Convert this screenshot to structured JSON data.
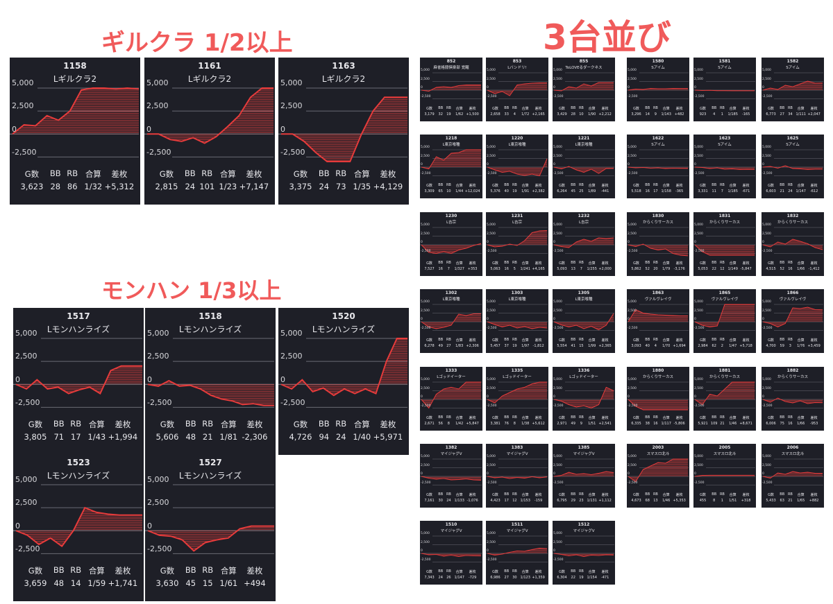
{
  "headings": {
    "gilcra": "ギルクラ 1/2以上",
    "monhun": "モンハン 1/3以上",
    "sandai": "3台並び"
  },
  "colors": {
    "accent": "#f05a5a",
    "card_bg": "#1e1f27",
    "line": "#e63b3b",
    "fill": "#c63a3a"
  },
  "stat_headers": [
    "G数",
    "BB",
    "RB",
    "合算",
    "差枚"
  ],
  "small_stat_headers": [
    "G数",
    "BB",
    "RB",
    "合算",
    "差枚"
  ],
  "axis_labels": [
    "5,000",
    "2,500",
    "0",
    "-2,500"
  ],
  "small_axis_labels": [
    "5,000",
    "2,500",
    "0",
    "-2,500"
  ],
  "chart_data": {
    "type": "line",
    "ylim": [
      -3000,
      5000
    ],
    "y_ticks": [
      5000,
      2500,
      0,
      -2500
    ],
    "groups": {
      "gilcra": [
        {
          "id": "1158",
          "name": "Lギルクラ2",
          "stats": [
            "3,623",
            "28",
            "86",
            "1/32",
            "+5,312"
          ],
          "y": [
            0,
            1000,
            900,
            2000,
            1500,
            2500,
            4800,
            5000,
            5000,
            4900,
            5000,
            4900
          ]
        },
        {
          "id": "1161",
          "name": "Lギルクラ2",
          "stats": [
            "2,815",
            "24",
            "101",
            "1/23",
            "+7,147"
          ],
          "y": [
            0,
            0,
            -600,
            -800,
            -400,
            -1000,
            -300,
            800,
            2000,
            4000,
            5000,
            5000
          ]
        },
        {
          "id": "1163",
          "name": "Lギルクラ2",
          "stats": [
            "3,375",
            "24",
            "73",
            "1/35",
            "+4,129"
          ],
          "y": [
            0,
            0,
            -800,
            -2000,
            -3000,
            -3000,
            -3000,
            0,
            2500,
            4000,
            4000,
            4000
          ]
        }
      ],
      "monhun": [
        {
          "id": "1517",
          "name": "Lモンハンライズ",
          "stats": [
            "3,805",
            "71",
            "17",
            "1/43",
            "+1,994"
          ],
          "y": [
            0,
            -500,
            500,
            -500,
            -300,
            -1000,
            -600,
            -300,
            -1000,
            1500,
            2000,
            2000,
            2000
          ]
        },
        {
          "id": "1518",
          "name": "Lモンハンライズ",
          "stats": [
            "5,606",
            "48",
            "21",
            "1/81",
            "-2,306"
          ],
          "y": [
            0,
            -200,
            400,
            -200,
            -100,
            -500,
            -1200,
            -1600,
            -1800,
            -2200,
            -2100,
            -2300,
            -2300
          ]
        },
        {
          "id": "1520",
          "name": "Lモンハンライズ",
          "stats": [
            "4,726",
            "94",
            "24",
            "1/40",
            "+5,971"
          ],
          "y": [
            0,
            -500,
            500,
            -800,
            -400,
            -1200,
            -500,
            -1000,
            -500,
            -1000,
            2500,
            5000,
            5000
          ]
        },
        {
          "id": "1523",
          "name": "Lモンハンライズ",
          "stats": [
            "3,659",
            "48",
            "14",
            "1/59",
            "+1,741"
          ],
          "y": [
            0,
            -500,
            -1500,
            -800,
            -1700,
            0,
            2500,
            2000,
            1800,
            1700,
            1700,
            1700
          ]
        },
        {
          "id": "1527",
          "name": "Lモンハンライズ",
          "stats": [
            "3,630",
            "45",
            "15",
            "1/61",
            "+494"
          ],
          "y": [
            0,
            -500,
            -600,
            -1000,
            -2200,
            -1300,
            -1000,
            -800,
            200,
            500,
            500,
            500
          ]
        }
      ],
      "sandai_left": [
        {
          "id": "852",
          "name": "麻雀格闘倶楽部 覚醒",
          "stats": [
            "3,179",
            "32",
            "19",
            "1/62",
            "+1,500"
          ],
          "y": [
            0,
            -300,
            800,
            1000,
            800,
            1300,
            1500,
            1500,
            1500
          ]
        },
        {
          "id": "853",
          "name": "Lバンドリ!",
          "stats": [
            "2,658",
            "33",
            "4",
            "1/72",
            "+2,165"
          ],
          "y": [
            0,
            -1000,
            -400,
            -1600,
            1500,
            1800,
            2000,
            2100,
            2100
          ]
        },
        {
          "id": "855",
          "name": "ToLOVEるダークネス",
          "stats": [
            "3,429",
            "28",
            "10",
            "1/90",
            "+2,212"
          ],
          "y": [
            0,
            -200,
            1000,
            600,
            1800,
            1200,
            2200,
            2200,
            2200
          ]
        },
        {
          "id": "1218",
          "name": "L東京喰種",
          "stats": [
            "3,309",
            "65",
            "10",
            "1/44",
            "+12,024"
          ],
          "y": [
            0,
            -500,
            3000,
            2000,
            4000,
            4200,
            5000,
            5000,
            5000
          ]
        },
        {
          "id": "1220",
          "name": "L東京喰種",
          "stats": [
            "5,376",
            "40",
            "19",
            "1/91",
            "+2,382"
          ],
          "y": [
            0,
            -800,
            -1500,
            -1200,
            -2000,
            -2400,
            -2000,
            -2500,
            2400
          ]
        },
        {
          "id": "1221",
          "name": "L東京喰種",
          "stats": [
            "6,264",
            "45",
            "25",
            "1/89",
            "-441"
          ],
          "y": [
            0,
            -500,
            200,
            -800,
            -1500,
            -600,
            -1800,
            -400,
            -400
          ]
        },
        {
          "id": "1230",
          "name": "L吉宗",
          "stats": [
            "7,527",
            "16",
            "7",
            "1/327",
            "+353"
          ],
          "y": [
            0,
            -2200,
            -2500,
            -2000,
            -2500,
            -1500,
            -1000,
            -200,
            350
          ]
        },
        {
          "id": "1231",
          "name": "L吉宗",
          "stats": [
            "5,063",
            "16",
            "5",
            "1/241",
            "+4,165"
          ],
          "y": [
            0,
            -600,
            -400,
            200,
            -200,
            1200,
            3500,
            4000,
            4100
          ]
        },
        {
          "id": "1232",
          "name": "L吉宗",
          "stats": [
            "5,093",
            "13",
            "7",
            "1/255",
            "+2,000"
          ],
          "y": [
            0,
            -500,
            -800,
            800,
            1600,
            1000,
            2000,
            1800,
            2000
          ]
        },
        {
          "id": "1302",
          "name": "L東京喰種",
          "stats": [
            "6,278",
            "49",
            "27",
            "1/83",
            "+2,306"
          ],
          "y": [
            0,
            -1500,
            -2000,
            -1600,
            -1000,
            2200,
            1800,
            2300,
            2300
          ]
        },
        {
          "id": "1303",
          "name": "L東京喰種",
          "stats": [
            "5,457",
            "37",
            "19",
            "1/97",
            "-1,812"
          ],
          "y": [
            0,
            -800,
            -1500,
            -1000,
            -1800,
            -1400,
            -2000,
            -1600,
            -1800
          ]
        },
        {
          "id": "1305",
          "name": "L東京喰種",
          "stats": [
            "5,554",
            "41",
            "15",
            "1/99",
            "+2,365"
          ],
          "y": [
            0,
            -900,
            -1500,
            -1000,
            -2000,
            -1300,
            -2300,
            -1000,
            2400
          ]
        },
        {
          "id": "1333",
          "name": "Lゴッドイーター",
          "stats": [
            "2,671",
            "56",
            "8",
            "1/42",
            "+5,847"
          ],
          "y": [
            0,
            -2500,
            1500,
            3000,
            3500,
            3000,
            5000,
            5000,
            5000
          ]
        },
        {
          "id": "1335",
          "name": "Lゴッドイーター",
          "stats": [
            "3,381",
            "76",
            "8",
            "1/38",
            "+5,612"
          ],
          "y": [
            0,
            -1000,
            1000,
            2000,
            3000,
            3500,
            4500,
            5000,
            5000
          ]
        },
        {
          "id": "1336",
          "name": "Lゴッドイーター",
          "stats": [
            "2,971",
            "49",
            "9",
            "1/51",
            "+2,541"
          ],
          "y": [
            0,
            -500,
            -1500,
            -2200,
            -1800,
            -2500,
            -1500,
            3500,
            2500
          ]
        },
        {
          "id": "1382",
          "name": "マイジャグV",
          "stats": [
            "7,161",
            "30",
            "24",
            "1/133",
            "-1,076"
          ],
          "y": [
            0,
            -500,
            -800,
            -600,
            -1000,
            -900,
            -700,
            -1000,
            -1100
          ]
        },
        {
          "id": "1383",
          "name": "マイジャグV",
          "stats": [
            "4,423",
            "17",
            "12",
            "1/153",
            "-159"
          ],
          "y": [
            0,
            -400,
            -200,
            -600,
            -300,
            -500,
            -100,
            -400,
            -150
          ]
        },
        {
          "id": "1385",
          "name": "マイジャグV",
          "stats": [
            "6,795",
            "29",
            "23",
            "1/131",
            "+1,112"
          ],
          "y": [
            0,
            300,
            1200,
            600,
            800,
            500,
            900,
            1400,
            1100
          ]
        },
        {
          "id": "1510",
          "name": "マイジャグV",
          "stats": [
            "7,343",
            "24",
            "26",
            "1/147",
            "-729"
          ],
          "y": [
            0,
            -400,
            -300,
            -800,
            -500,
            -900,
            -600,
            -700,
            -730
          ]
        },
        {
          "id": "1511",
          "name": "マイジャグV",
          "stats": [
            "6,986",
            "27",
            "30",
            "1/123",
            "+1,359"
          ],
          "y": [
            0,
            -500,
            -200,
            300,
            700,
            600,
            1100,
            1500,
            1360
          ]
        },
        {
          "id": "1512",
          "name": "マイジャグV",
          "stats": [
            "6,304",
            "22",
            "19",
            "1/154",
            "-471"
          ],
          "y": [
            0,
            -300,
            -700,
            -400,
            -900,
            -500,
            -600,
            -400,
            -470
          ]
        }
      ],
      "sandai_right": [
        {
          "id": "1580",
          "name": "Sアイム",
          "stats": [
            "3,296",
            "14",
            "9",
            "1/143",
            "+482"
          ],
          "y": [
            0,
            300,
            200,
            500,
            400,
            400,
            500,
            480,
            480
          ]
        },
        {
          "id": "1581",
          "name": "Sアイム",
          "stats": [
            "923",
            "4",
            "1",
            "1/185",
            "-165"
          ],
          "y": [
            0,
            -100,
            -50,
            -150,
            -160,
            -165,
            -165,
            -165,
            -165
          ]
        },
        {
          "id": "1582",
          "name": "Sアイム",
          "stats": [
            "6,773",
            "27",
            "34",
            "1/111",
            "+2,047"
          ],
          "y": [
            0,
            600,
            200,
            1400,
            1000,
            1800,
            2600,
            2000,
            2050
          ]
        },
        {
          "id": "1622",
          "name": "Sアイム",
          "stats": [
            "5,518",
            "16",
            "17",
            "1/158",
            "-365"
          ],
          "y": [
            0,
            -200,
            -100,
            -300,
            -200,
            -400,
            -300,
            -350,
            -365
          ]
        },
        {
          "id": "1623",
          "name": "Sアイム",
          "stats": [
            "3,331",
            "11",
            "7",
            "1/185",
            "-671"
          ],
          "y": [
            0,
            -100,
            -400,
            -200,
            -600,
            -500,
            -700,
            -650,
            -670
          ]
        },
        {
          "id": "1625",
          "name": "Sアイム",
          "stats": [
            "6,603",
            "21",
            "24",
            "1/147",
            "-612"
          ],
          "y": [
            0,
            200,
            -300,
            400,
            -400,
            -500,
            -700,
            -600,
            -612
          ]
        },
        {
          "id": "1830",
          "name": "からくりサーカス",
          "stats": [
            "5,862",
            "52",
            "20",
            "1/79",
            "-3,176"
          ],
          "y": [
            0,
            -500,
            200,
            -1000,
            -1500,
            -1200,
            -2500,
            -3000,
            -3176
          ]
        },
        {
          "id": "1831",
          "name": "からくりサーカス",
          "stats": [
            "5,053",
            "22",
            "12",
            "1/149",
            "-5,847"
          ],
          "y": [
            0,
            -2000,
            -3000,
            -3000,
            -3000,
            -3000,
            -3000,
            -3000,
            -3000
          ]
        },
        {
          "id": "1832",
          "name": "からくりサーカス",
          "stats": [
            "4,515",
            "52",
            "16",
            "1/66",
            "-1,412"
          ],
          "y": [
            0,
            -600,
            800,
            200,
            1600,
            1000,
            300,
            -800,
            -1412
          ]
        },
        {
          "id": "1863",
          "name": "ヴァルヴレイヴ",
          "stats": [
            "3,093",
            "40",
            "4",
            "1/70",
            "+1,694"
          ],
          "y": [
            0,
            3500,
            2500,
            2200,
            2000,
            1900,
            1800,
            1700,
            1694
          ]
        },
        {
          "id": "1865",
          "name": "ヴァルヴレイヴ",
          "stats": [
            "2,984",
            "62",
            "2",
            "1/47",
            "+5,718"
          ],
          "y": [
            0,
            -1000,
            -1500,
            -1200,
            5000,
            5000,
            5000,
            5000,
            5000
          ]
        },
        {
          "id": "1866",
          "name": "ヴァルヴレイヴ",
          "stats": [
            "4,700",
            "59",
            "3",
            "1/76",
            "+3,459"
          ],
          "y": [
            0,
            -500,
            -1500,
            -500,
            4000,
            3800,
            4200,
            3500,
            3459
          ]
        },
        {
          "id": "1880",
          "name": "からくりサーカス",
          "stats": [
            "6,335",
            "38",
            "16",
            "1/117",
            "-5,806"
          ],
          "y": [
            0,
            -2000,
            -3000,
            -3000,
            -3000,
            -3000,
            -3000,
            -3000,
            -3000
          ]
        },
        {
          "id": "1881",
          "name": "からくりサーカス",
          "stats": [
            "5,921",
            "109",
            "21",
            "1/46",
            "+8,671"
          ],
          "y": [
            0,
            -1500,
            1500,
            1000,
            3000,
            5000,
            5000,
            5000,
            5000
          ]
        },
        {
          "id": "1882",
          "name": "からくりサーカス",
          "stats": [
            "6,006",
            "75",
            "16",
            "1/66",
            "-953"
          ],
          "y": [
            0,
            -800,
            400,
            -600,
            -1000,
            -400,
            -1200,
            -900,
            -953
          ]
        },
        {
          "id": "2003",
          "name": "スマスロ北斗",
          "stats": [
            "4,673",
            "68",
            "13",
            "1/46",
            "+5,353"
          ],
          "y": [
            0,
            -1500,
            2000,
            3000,
            4000,
            3800,
            5000,
            5000,
            5000
          ]
        },
        {
          "id": "2005",
          "name": "スマスロ北斗",
          "stats": [
            "455",
            "8",
            "1",
            "1/51",
            "+318"
          ],
          "y": [
            0,
            300,
            320,
            318,
            318,
            318,
            318,
            318,
            318
          ]
        },
        {
          "id": "2006",
          "name": "スマスロ北斗",
          "stats": [
            "5,433",
            "63",
            "21",
            "1/65",
            "+882"
          ],
          "y": [
            0,
            -500,
            1000,
            600,
            1400,
            1000,
            1200,
            900,
            882
          ]
        }
      ]
    }
  }
}
